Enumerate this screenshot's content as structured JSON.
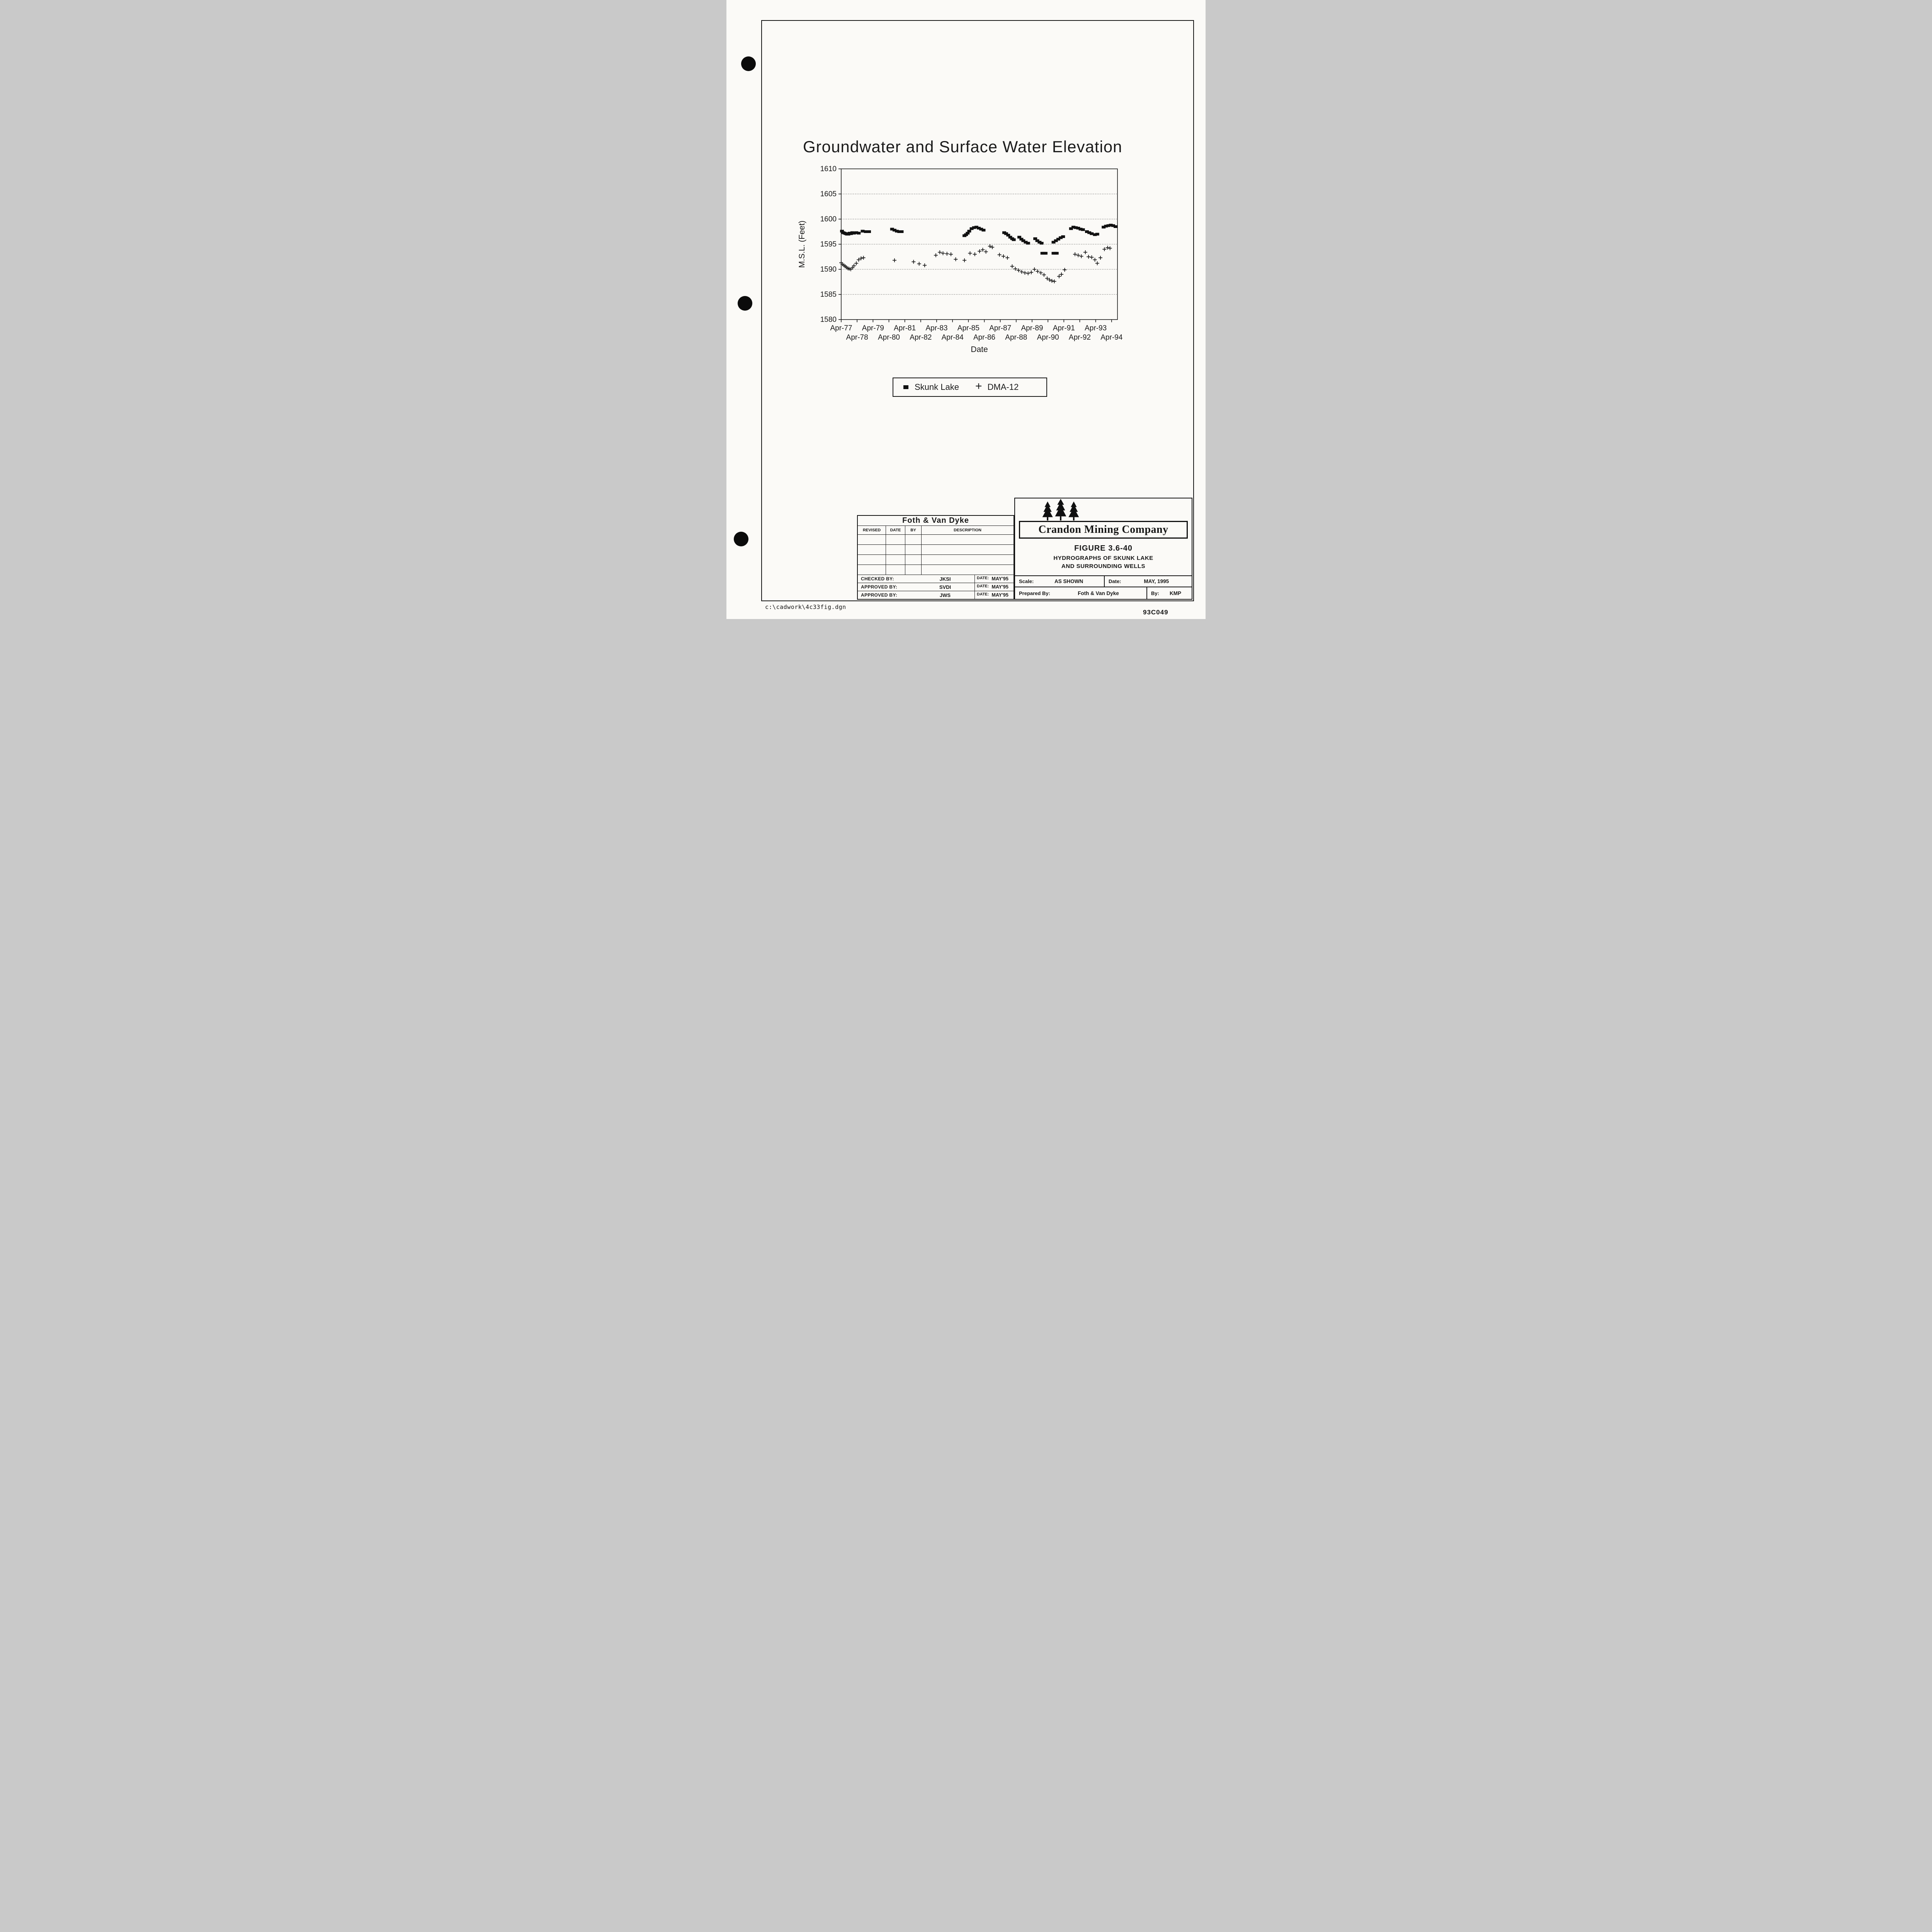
{
  "page": {
    "footer_left": "c:\\cadwork\\4c33fig.dgn",
    "footer_right": "93C049"
  },
  "chart_data": {
    "type": "scatter",
    "title": "Groundwater and Surface Water Elevation",
    "xlabel": "Date",
    "ylabel": "M.S.L. (Feet)",
    "ylim": [
      1580,
      1610
    ],
    "yticks": [
      1580,
      1585,
      1590,
      1595,
      1600,
      1605,
      1610
    ],
    "xlim": [
      1977.25,
      1994.62
    ],
    "grid": "dotted horizontal",
    "legend_position": "below chart in framed box",
    "xticks": [
      {
        "label": "Apr-77",
        "year": 1977.25,
        "row": 1
      },
      {
        "label": "Apr-78",
        "year": 1978.25,
        "row": 2
      },
      {
        "label": "Apr-79",
        "year": 1979.25,
        "row": 1
      },
      {
        "label": "Apr-80",
        "year": 1980.25,
        "row": 2
      },
      {
        "label": "Apr-81",
        "year": 1981.25,
        "row": 1
      },
      {
        "label": "Apr-82",
        "year": 1982.25,
        "row": 2
      },
      {
        "label": "Apr-83",
        "year": 1983.25,
        "row": 1
      },
      {
        "label": "Apr-84",
        "year": 1984.25,
        "row": 2
      },
      {
        "label": "Apr-85",
        "year": 1985.25,
        "row": 1
      },
      {
        "label": "Apr-86",
        "year": 1986.25,
        "row": 2
      },
      {
        "label": "Apr-87",
        "year": 1987.25,
        "row": 1
      },
      {
        "label": "Apr-88",
        "year": 1988.25,
        "row": 2
      },
      {
        "label": "Apr-89",
        "year": 1989.25,
        "row": 1
      },
      {
        "label": "Apr-90",
        "year": 1990.25,
        "row": 2
      },
      {
        "label": "Apr-91",
        "year": 1991.25,
        "row": 1
      },
      {
        "label": "Apr-92",
        "year": 1992.25,
        "row": 2
      },
      {
        "label": "Apr-93",
        "year": 1993.25,
        "row": 1
      },
      {
        "label": "Apr-94",
        "year": 1994.25,
        "row": 2
      }
    ],
    "series": [
      {
        "name": "Skunk Lake",
        "marker": "square",
        "color": "#111111",
        "points": [
          [
            1977.3,
            1597.6
          ],
          [
            1977.38,
            1597.3
          ],
          [
            1977.46,
            1597.2
          ],
          [
            1977.54,
            1597.1
          ],
          [
            1977.62,
            1597.0
          ],
          [
            1977.7,
            1597.0
          ],
          [
            1977.78,
            1597.2
          ],
          [
            1977.86,
            1597.1
          ],
          [
            1977.95,
            1597.3
          ],
          [
            1978.05,
            1597.2
          ],
          [
            1978.2,
            1597.3
          ],
          [
            1978.35,
            1597.2
          ],
          [
            1978.6,
            1597.6
          ],
          [
            1978.8,
            1597.5
          ],
          [
            1979.0,
            1597.5
          ],
          [
            1980.45,
            1598.0
          ],
          [
            1980.6,
            1597.8
          ],
          [
            1980.75,
            1597.6
          ],
          [
            1980.9,
            1597.5
          ],
          [
            1981.05,
            1597.5
          ],
          [
            1985.0,
            1596.7
          ],
          [
            1985.1,
            1596.9
          ],
          [
            1985.2,
            1597.2
          ],
          [
            1985.3,
            1597.6
          ],
          [
            1985.45,
            1598.1
          ],
          [
            1985.6,
            1598.3
          ],
          [
            1985.75,
            1598.4
          ],
          [
            1985.9,
            1598.2
          ],
          [
            1986.05,
            1598.0
          ],
          [
            1986.2,
            1597.8
          ],
          [
            1987.5,
            1597.3
          ],
          [
            1987.62,
            1597.1
          ],
          [
            1987.75,
            1596.8
          ],
          [
            1987.88,
            1596.4
          ],
          [
            1988.0,
            1596.1
          ],
          [
            1988.1,
            1595.9
          ],
          [
            1988.45,
            1596.4
          ],
          [
            1988.58,
            1596.0
          ],
          [
            1988.7,
            1595.7
          ],
          [
            1988.85,
            1595.4
          ],
          [
            1989.0,
            1595.2
          ],
          [
            1989.45,
            1596.1
          ],
          [
            1989.58,
            1595.7
          ],
          [
            1989.72,
            1595.4
          ],
          [
            1989.85,
            1595.2
          ],
          [
            1989.9,
            1593.2
          ],
          [
            1990.0,
            1593.2
          ],
          [
            1990.1,
            1593.2
          ],
          [
            1990.6,
            1593.2
          ],
          [
            1990.7,
            1593.2
          ],
          [
            1990.8,
            1593.2
          ],
          [
            1990.6,
            1595.4
          ],
          [
            1990.75,
            1595.7
          ],
          [
            1990.9,
            1596.0
          ],
          [
            1991.05,
            1596.3
          ],
          [
            1991.2,
            1596.5
          ],
          [
            1991.7,
            1598.1
          ],
          [
            1991.85,
            1598.4
          ],
          [
            1992.0,
            1598.3
          ],
          [
            1992.15,
            1598.2
          ],
          [
            1992.3,
            1598.0
          ],
          [
            1992.45,
            1597.9
          ],
          [
            1992.7,
            1597.5
          ],
          [
            1992.85,
            1597.3
          ],
          [
            1993.0,
            1597.1
          ],
          [
            1993.2,
            1596.9
          ],
          [
            1993.35,
            1597.0
          ],
          [
            1993.75,
            1598.4
          ],
          [
            1993.9,
            1598.6
          ],
          [
            1994.05,
            1598.7
          ],
          [
            1994.2,
            1598.8
          ],
          [
            1994.35,
            1598.7
          ],
          [
            1994.5,
            1598.5
          ]
        ]
      },
      {
        "name": "DMA-12",
        "marker": "plus",
        "color": "#1a1a1a",
        "points": [
          [
            1977.25,
            1591.3
          ],
          [
            1977.33,
            1591.0
          ],
          [
            1977.42,
            1590.8
          ],
          [
            1977.5,
            1590.6
          ],
          [
            1977.58,
            1590.4
          ],
          [
            1977.67,
            1590.2
          ],
          [
            1977.75,
            1590.1
          ],
          [
            1977.85,
            1590.0
          ],
          [
            1977.95,
            1590.3
          ],
          [
            1978.05,
            1590.7
          ],
          [
            1978.2,
            1591.2
          ],
          [
            1978.35,
            1591.9
          ],
          [
            1978.5,
            1592.2
          ],
          [
            1978.65,
            1592.3
          ],
          [
            1980.6,
            1591.8
          ],
          [
            1981.8,
            1591.5
          ],
          [
            1982.15,
            1591.1
          ],
          [
            1982.5,
            1590.8
          ],
          [
            1983.2,
            1592.8
          ],
          [
            1983.45,
            1593.4
          ],
          [
            1983.65,
            1593.2
          ],
          [
            1983.9,
            1593.1
          ],
          [
            1984.15,
            1593.0
          ],
          [
            1984.45,
            1592.0
          ],
          [
            1985.0,
            1591.8
          ],
          [
            1985.35,
            1593.2
          ],
          [
            1985.65,
            1593.0
          ],
          [
            1985.95,
            1593.6
          ],
          [
            1986.15,
            1593.9
          ],
          [
            1986.35,
            1593.5
          ],
          [
            1986.6,
            1594.6
          ],
          [
            1986.75,
            1594.4
          ],
          [
            1987.2,
            1592.9
          ],
          [
            1987.45,
            1592.6
          ],
          [
            1987.7,
            1592.3
          ],
          [
            1988.0,
            1590.6
          ],
          [
            1988.2,
            1590.1
          ],
          [
            1988.4,
            1589.8
          ],
          [
            1988.6,
            1589.5
          ],
          [
            1988.8,
            1589.3
          ],
          [
            1989.0,
            1589.2
          ],
          [
            1989.2,
            1589.4
          ],
          [
            1989.4,
            1590.0
          ],
          [
            1989.6,
            1589.6
          ],
          [
            1989.8,
            1589.3
          ],
          [
            1990.0,
            1588.9
          ],
          [
            1990.2,
            1588.2
          ],
          [
            1990.35,
            1587.9
          ],
          [
            1990.5,
            1587.7
          ],
          [
            1990.65,
            1587.6
          ],
          [
            1990.95,
            1588.6
          ],
          [
            1991.1,
            1589.0
          ],
          [
            1991.3,
            1589.9
          ],
          [
            1991.95,
            1593.0
          ],
          [
            1992.15,
            1592.8
          ],
          [
            1992.35,
            1592.6
          ],
          [
            1992.6,
            1593.4
          ],
          [
            1992.8,
            1592.5
          ],
          [
            1993.0,
            1592.4
          ],
          [
            1993.2,
            1591.9
          ],
          [
            1993.35,
            1591.2
          ],
          [
            1993.55,
            1592.3
          ],
          [
            1993.8,
            1594.0
          ],
          [
            1994.0,
            1594.3
          ],
          [
            1994.15,
            1594.2
          ]
        ]
      }
    ]
  },
  "title_block": {
    "firm": "Foth & Van Dyke",
    "revision_headers": [
      "REVISED",
      "DATE",
      "BY",
      "DESCRIPTION"
    ],
    "approvals": [
      {
        "label": "CHECKED BY:",
        "name": "JKSI",
        "date_label": "DATE:",
        "date": "MAY'95"
      },
      {
        "label": "APPROVED BY:",
        "name": "SVDI",
        "date_label": "DATE:",
        "date": "MAY'95"
      },
      {
        "label": "APPROVED BY:",
        "name": "JWS",
        "date_label": "DATE:",
        "date": "MAY'95"
      }
    ],
    "logo_icon": "pine-trees-icon",
    "company": "Crandon Mining Company",
    "figure_label": "FIGURE 3.6-40",
    "figure_title_line1": "HYDROGRAPHS OF SKUNK LAKE",
    "figure_title_line2": "AND SURROUNDING WELLS",
    "scale_label": "Scale:",
    "scale_value": "AS SHOWN",
    "date_label": "Date:",
    "date_value": "MAY, 1995",
    "prepared_label": "Prepared By:",
    "prepared_value": "Foth & Van Dyke",
    "by_label": "By:",
    "by_value": "KMP"
  }
}
